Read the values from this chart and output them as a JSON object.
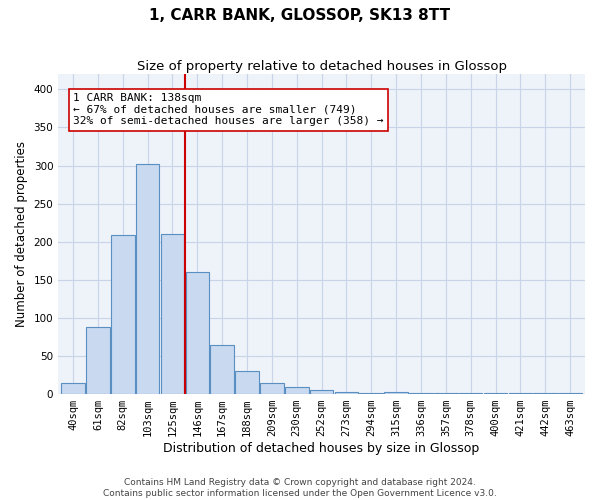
{
  "title": "1, CARR BANK, GLOSSOP, SK13 8TT",
  "subtitle": "Size of property relative to detached houses in Glossop",
  "xlabel": "Distribution of detached houses by size in Glossop",
  "ylabel": "Number of detached properties",
  "categories": [
    "40sqm",
    "61sqm",
    "82sqm",
    "103sqm",
    "125sqm",
    "146sqm",
    "167sqm",
    "188sqm",
    "209sqm",
    "230sqm",
    "252sqm",
    "273sqm",
    "294sqm",
    "315sqm",
    "336sqm",
    "357sqm",
    "378sqm",
    "400sqm",
    "421sqm",
    "442sqm",
    "463sqm"
  ],
  "values": [
    14,
    88,
    209,
    302,
    210,
    160,
    64,
    30,
    15,
    9,
    5,
    3,
    1,
    3,
    1,
    1,
    1,
    1,
    1,
    2,
    1
  ],
  "bar_color": "#c8d9f0",
  "bar_edge_color": "#5a8fc2",
  "vline_x": 4.5,
  "vline_color": "#cc0000",
  "annotation_line1": "1 CARR BANK: 138sqm",
  "annotation_line2": "← 67% of detached houses are smaller (749)",
  "annotation_line3": "32% of semi-detached houses are larger (358) →",
  "annotation_box_color": "#ffffff",
  "annotation_box_edge_color": "#cc0000",
  "ylim": [
    0,
    420
  ],
  "yticks": [
    0,
    50,
    100,
    150,
    200,
    250,
    300,
    350,
    400
  ],
  "grid_color": "#c8d4e8",
  "background_color": "#eef2f9",
  "footer_line1": "Contains HM Land Registry data © Crown copyright and database right 2024.",
  "footer_line2": "Contains public sector information licensed under the Open Government Licence v3.0.",
  "title_fontsize": 11,
  "subtitle_fontsize": 9.5,
  "xlabel_fontsize": 9,
  "ylabel_fontsize": 8.5,
  "tick_fontsize": 7.5,
  "annotation_fontsize": 8,
  "footer_fontsize": 6.5
}
